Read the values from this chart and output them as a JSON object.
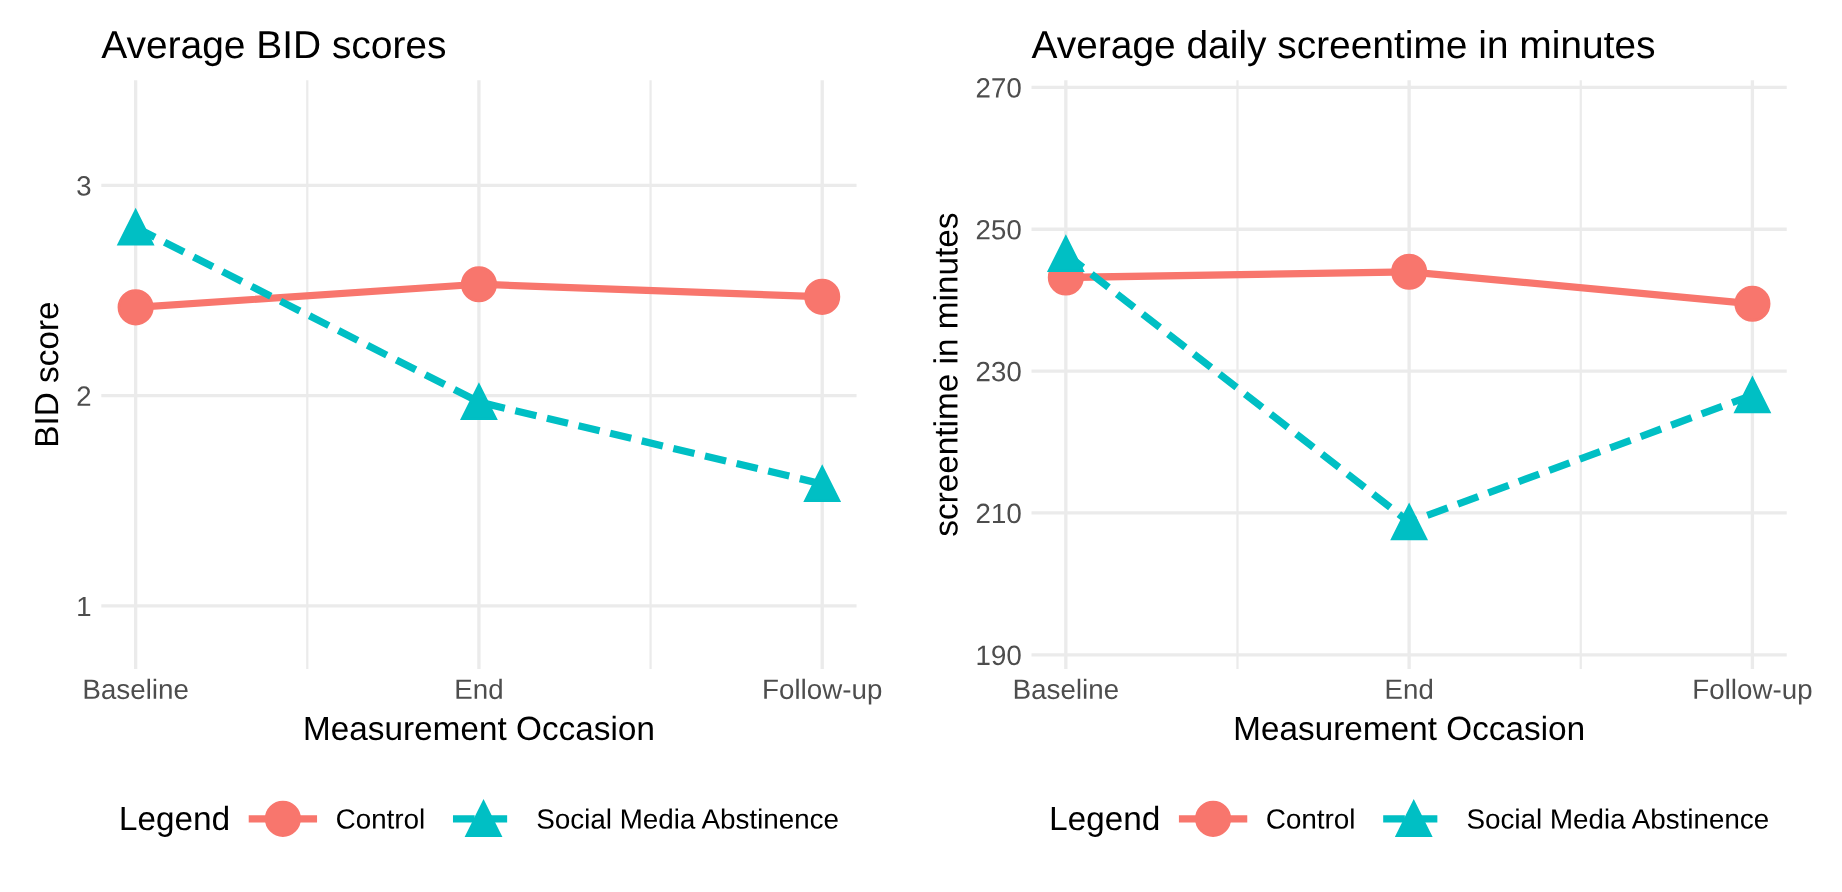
{
  "chart_data": [
    {
      "type": "line",
      "title": "Average BID scores",
      "xlabel": "Measurement Occasion",
      "ylabel": "BID score",
      "legend_title": "Legend",
      "categories": [
        "Baseline",
        "End",
        "Follow-up"
      ],
      "series": [
        {
          "name": "Control",
          "color": "#f8766d",
          "marker": "circle",
          "line_style": "solid",
          "values": [
            2.42,
            2.53,
            2.47
          ]
        },
        {
          "name": "Social Media Abstinence",
          "color": "#00bfc4",
          "marker": "triangle",
          "line_style": "dashed",
          "values": [
            2.8,
            1.97,
            1.58
          ]
        }
      ],
      "ylim": [
        0.7,
        3.5
      ],
      "yticks": [
        1,
        2,
        3
      ],
      "grid": true,
      "legend": "bottom"
    },
    {
      "type": "line",
      "title": "Average daily screentime in minutes",
      "xlabel": "Measurement Occasion",
      "ylabel": "screentime in minutes",
      "legend_title": "Legend",
      "categories": [
        "Baseline",
        "End",
        "Follow-up"
      ],
      "series": [
        {
          "name": "Control",
          "color": "#f8766d",
          "marker": "circle",
          "line_style": "solid",
          "values": [
            243.2,
            244.0,
            239.5
          ]
        },
        {
          "name": "Social Media Abstinence",
          "color": "#00bfc4",
          "marker": "triangle",
          "line_style": "dashed",
          "values": [
            246.5,
            208.7,
            226.6
          ]
        }
      ],
      "ylim": [
        188,
        271
      ],
      "yticks": [
        190,
        210,
        230,
        250,
        270
      ],
      "grid": true,
      "legend": "bottom"
    }
  ]
}
